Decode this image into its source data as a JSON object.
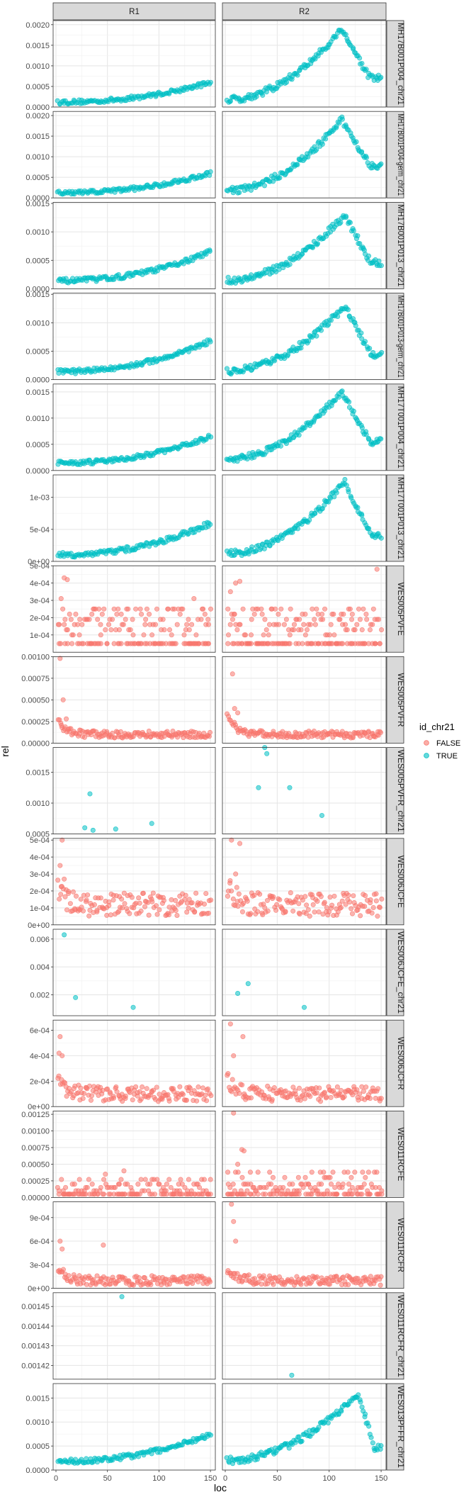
{
  "chart_data": {
    "type": "scatter",
    "xlabel": "loc",
    "ylabel": "rel",
    "xlim": [
      0,
      152
    ],
    "x_ticks": [
      {
        "value": 0,
        "label": "0"
      },
      {
        "value": 50,
        "label": "50"
      },
      {
        "value": 100,
        "label": "100"
      },
      {
        "value": 150,
        "label": "150"
      }
    ],
    "columns": [
      "R1",
      "R2"
    ],
    "legend": {
      "title": "id_chr21",
      "placement": "right",
      "items": [
        {
          "label": "FALSE",
          "color": "#F8766D"
        },
        {
          "label": "TRUE",
          "color": "#00BFC4"
        }
      ]
    },
    "grid": true,
    "panels": [
      {
        "row": "MH17B001P004_chr21",
        "group": "TRUE",
        "ylim": [
          0,
          0.0021
        ],
        "y_ticks": [
          {
            "value": 0,
            "label": "0.0000"
          },
          {
            "value": 0.0005,
            "label": "0.0005"
          },
          {
            "value": 0.001,
            "label": "0.0010"
          },
          {
            "value": 0.0015,
            "label": "0.0015"
          },
          {
            "value": 0.002,
            "label": "0.0020"
          }
        ],
        "R1": {
          "pattern": "rise",
          "y0": 0.00012,
          "y1": 0.0006,
          "noise": 5e-05,
          "n": 120
        },
        "R2": {
          "pattern": "peak",
          "y0": 0.00018,
          "peak": 0.0019,
          "peakx": 112,
          "end": 0.0007,
          "noise": 8e-05,
          "n": 130
        }
      },
      {
        "row": "MH17B001P004-germ_chr21",
        "group": "TRUE",
        "ylim": [
          0,
          0.0021
        ],
        "y_ticks": [
          {
            "value": 0,
            "label": "0.0000"
          },
          {
            "value": 0.0005,
            "label": "0.0005"
          },
          {
            "value": 0.001,
            "label": "0.0010"
          },
          {
            "value": 0.0015,
            "label": "0.0015"
          },
          {
            "value": 0.002,
            "label": "0.0020"
          }
        ],
        "R1": {
          "pattern": "rise",
          "y0": 0.00012,
          "y1": 0.0006,
          "noise": 5e-05,
          "n": 120
        },
        "R2": {
          "pattern": "peak",
          "y0": 0.00018,
          "peak": 0.0019,
          "peakx": 112,
          "end": 0.0008,
          "noise": 8e-05,
          "n": 130
        }
      },
      {
        "row": "MH17B001P013_chr21",
        "group": "TRUE",
        "ylim": [
          0,
          0.00152
        ],
        "y_ticks": [
          {
            "value": 0,
            "label": "0.0000"
          },
          {
            "value": 0.0005,
            "label": "0.0005"
          },
          {
            "value": 0.001,
            "label": "0.0010"
          },
          {
            "value": 0.0015,
            "label": "0.0015"
          }
        ],
        "R1": {
          "pattern": "rise",
          "y0": 0.00014,
          "y1": 0.00065,
          "noise": 4e-05,
          "n": 120
        },
        "R2": {
          "pattern": "peak",
          "y0": 0.00015,
          "peak": 0.0013,
          "peakx": 115,
          "end": 0.00045,
          "noise": 6e-05,
          "n": 130
        }
      },
      {
        "row": "MH17B001P013-germ_chr21",
        "group": "TRUE",
        "ylim": [
          0,
          0.00152
        ],
        "y_ticks": [
          {
            "value": 0,
            "label": "0.0000"
          },
          {
            "value": 0.0005,
            "label": "0.0005"
          },
          {
            "value": 0.001,
            "label": "0.0010"
          },
          {
            "value": 0.0015,
            "label": "0.0015"
          }
        ],
        "R1": {
          "pattern": "rise",
          "y0": 0.00014,
          "y1": 0.00068,
          "noise": 4e-05,
          "n": 120
        },
        "R2": {
          "pattern": "peak",
          "y0": 0.00015,
          "peak": 0.0013,
          "peakx": 115,
          "end": 0.00045,
          "noise": 6e-05,
          "n": 130
        }
      },
      {
        "row": "MH17T001P004_chr21",
        "group": "TRUE",
        "ylim": [
          0,
          0.00165
        ],
        "y_ticks": [
          {
            "value": 0,
            "label": "0.0000"
          },
          {
            "value": 0.0005,
            "label": "0.0005"
          },
          {
            "value": 0.001,
            "label": "0.0010"
          },
          {
            "value": 0.0015,
            "label": "0.0015"
          }
        ],
        "R1": {
          "pattern": "rise",
          "y0": 0.00014,
          "y1": 0.00065,
          "noise": 4e-05,
          "n": 120
        },
        "R2": {
          "pattern": "peak",
          "y0": 0.00022,
          "peak": 0.0015,
          "peakx": 112,
          "end": 0.00055,
          "noise": 6e-05,
          "n": 130
        }
      },
      {
        "row": "MH17T001P013_chr21",
        "group": "TRUE",
        "ylim": [
          0,
          0.00135
        ],
        "y_ticks": [
          {
            "value": 0,
            "label": "0e+00"
          },
          {
            "value": 0.0005,
            "label": "5e-04"
          },
          {
            "value": 0.001,
            "label": "1e-03"
          }
        ],
        "R1": {
          "pattern": "rise",
          "y0": 0.0001,
          "y1": 0.0006,
          "noise": 4e-05,
          "n": 120
        },
        "R2": {
          "pattern": "peak",
          "y0": 0.00012,
          "peak": 0.00125,
          "peakx": 115,
          "end": 0.0004,
          "noise": 5e-05,
          "n": 130
        }
      },
      {
        "row": "WES005PVFE",
        "group": "FALSE",
        "ylim": [
          0,
          0.0005
        ],
        "y_ticks": [
          {
            "value": 0,
            "label": ""
          },
          {
            "value": 0.0001,
            "label": "1e-04"
          },
          {
            "value": 0.0002,
            "label": "2e-04"
          },
          {
            "value": 0.0003,
            "label": "3e-04"
          },
          {
            "value": 0.0004,
            "label": "4e-04"
          },
          {
            "value": 0.0005,
            "label": "5e-04"
          }
        ],
        "R1": {
          "pattern": "levels",
          "levels": [
            5e-05,
            0.0001,
            0.00013,
            0.00016,
            0.00019,
            0.00022,
            0.00025
          ],
          "n": 110,
          "extras": [
            [
              5,
              0.00031
            ],
            [
              8,
              0.00043
            ],
            [
              11,
              0.00042
            ],
            [
              134,
              0.00031
            ]
          ]
        },
        "R2": {
          "pattern": "levels",
          "levels": [
            5e-05,
            0.0001,
            0.00013,
            0.00016,
            0.00019,
            0.00022,
            0.00025
          ],
          "n": 120,
          "extras": [
            [
              10,
              0.0004
            ],
            [
              14,
              0.00041
            ],
            [
              146,
              0.00048
            ],
            [
              5,
              0.00035
            ]
          ]
        }
      },
      {
        "row": "WES005PVFR",
        "group": "FALSE",
        "ylim": [
          0,
          0.001
        ],
        "y_ticks": [
          {
            "value": 0,
            "label": "0.00000"
          },
          {
            "value": 0.00025,
            "label": "0.00025"
          },
          {
            "value": 0.0005,
            "label": "0.00050"
          },
          {
            "value": 0.00075,
            "label": "0.00075"
          },
          {
            "value": 0.001,
            "label": "0.00100"
          }
        ],
        "R1": {
          "pattern": "decay",
          "base": 0.0001,
          "start": 0.0003,
          "noise": 4e-05,
          "n": 140,
          "extras": [
            [
              4,
              0.00098
            ],
            [
              7,
              0.0005
            ],
            [
              10,
              0.00028
            ]
          ]
        },
        "R2": {
          "pattern": "decay",
          "base": 0.0001,
          "start": 0.0004,
          "noise": 4e-05,
          "n": 140,
          "extras": [
            [
              7,
              0.0008
            ],
            [
              9,
              0.0004
            ],
            [
              12,
              0.00035
            ]
          ]
        }
      },
      {
        "row": "WES005PVFR_chr21",
        "group": "TRUE",
        "ylim": [
          0.0005,
          0.0019
        ],
        "y_ticks": [
          {
            "value": 0.0005,
            "label": "0.0005"
          },
          {
            "value": 0.001,
            "label": "0.0010"
          },
          {
            "value": 0.0015,
            "label": "0.0015"
          }
        ],
        "R1": {
          "pattern": "points",
          "points": [
            [
              28,
              0.0006
            ],
            [
              33,
              0.00115
            ],
            [
              36,
              0.00056
            ],
            [
              58,
              0.00058
            ],
            [
              93,
              0.00067
            ]
          ]
        },
        "R2": {
          "pattern": "points",
          "points": [
            [
              32,
              0.00125
            ],
            [
              38,
              0.0019
            ],
            [
              40,
              0.0018
            ],
            [
              62,
              0.00125
            ],
            [
              93,
              0.0008
            ]
          ]
        }
      },
      {
        "row": "WES006JCFE",
        "group": "FALSE",
        "ylim": [
          0,
          0.00051
        ],
        "y_ticks": [
          {
            "value": 0,
            "label": "0e+00"
          },
          {
            "value": 0.0001,
            "label": "1e-04"
          },
          {
            "value": 0.0002,
            "label": "2e-04"
          },
          {
            "value": 0.0003,
            "label": "3e-04"
          },
          {
            "value": 0.0004,
            "label": "4e-04"
          },
          {
            "value": 0.0005,
            "label": "5e-04"
          }
        ],
        "R1": {
          "pattern": "decay",
          "base": 0.00012,
          "start": 0.00022,
          "noise": 7e-05,
          "n": 140,
          "extras": [
            [
              6,
              0.0005
            ],
            [
              4,
              0.00035
            ],
            [
              8,
              0.00027
            ]
          ]
        },
        "R2": {
          "pattern": "decay",
          "base": 0.00012,
          "start": 0.00025,
          "noise": 7e-05,
          "n": 140,
          "extras": [
            [
              6,
              0.0005
            ],
            [
              14,
              0.00048
            ],
            [
              10,
              0.0003
            ]
          ]
        }
      },
      {
        "row": "WES006JCFE_chr21",
        "group": "TRUE",
        "ylim": [
          0.0005,
          0.0067
        ],
        "y_ticks": [
          {
            "value": 0.002,
            "label": "0.002"
          },
          {
            "value": 0.004,
            "label": "0.004"
          },
          {
            "value": 0.006,
            "label": "0.006"
          }
        ],
        "R1": {
          "pattern": "points",
          "points": [
            [
              8,
              0.0063
            ],
            [
              19,
              0.0018
            ],
            [
              75,
              0.0011
            ]
          ]
        },
        "R2": {
          "pattern": "points",
          "points": [
            [
              12,
              0.0021
            ],
            [
              22,
              0.0028
            ],
            [
              76,
              0.0011
            ]
          ]
        }
      },
      {
        "row": "WES006JCFR",
        "group": "FALSE",
        "ylim": [
          0,
          0.00068
        ],
        "y_ticks": [
          {
            "value": 0,
            "label": "0e+00"
          },
          {
            "value": 0.0002,
            "label": "2e-04"
          },
          {
            "value": 0.0004,
            "label": "4e-04"
          },
          {
            "value": 0.0006,
            "label": "6e-04"
          }
        ],
        "R1": {
          "pattern": "decay",
          "base": 0.0001,
          "start": 0.00025,
          "noise": 6e-05,
          "n": 140,
          "extras": [
            [
              4,
              0.00055
            ],
            [
              6,
              0.0004
            ],
            [
              3,
              0.00042
            ]
          ]
        },
        "R2": {
          "pattern": "decay",
          "base": 0.0001,
          "start": 0.00025,
          "noise": 6e-05,
          "n": 140,
          "extras": [
            [
              5,
              0.00065
            ],
            [
              17,
              0.00055
            ],
            [
              8,
              0.0004
            ]
          ]
        }
      },
      {
        "row": "WES011RCFE",
        "group": "FALSE",
        "ylim": [
          0,
          0.0013
        ],
        "y_ticks": [
          {
            "value": 0,
            "label": "0.00000"
          },
          {
            "value": 0.00025,
            "label": "0.00025"
          },
          {
            "value": 0.0005,
            "label": "0.00050"
          },
          {
            "value": 0.00075,
            "label": "0.00075"
          },
          {
            "value": 0.001,
            "label": "0.00100"
          },
          {
            "value": 0.00125,
            "label": "0.00125"
          }
        ],
        "R1": {
          "pattern": "levels",
          "levels": [
            5e-05,
            0.0001,
            0.00015,
            0.0002,
            0.00027
          ],
          "n": 100,
          "extras": [
            [
              66,
              0.0004
            ],
            [
              48,
              0.00035
            ]
          ]
        },
        "R2": {
          "pattern": "levels",
          "levels": [
            5e-05,
            0.0001,
            0.00015,
            0.0002,
            0.0003,
            0.00038
          ],
          "n": 110,
          "extras": [
            [
              8,
              0.00127
            ],
            [
              16,
              0.00072
            ],
            [
              18,
              0.0007
            ],
            [
              12,
              0.0005
            ]
          ]
        }
      },
      {
        "row": "WES011RCFR",
        "group": "FALSE",
        "ylim": [
          0,
          0.0011
        ],
        "y_ticks": [
          {
            "value": 0,
            "label": "0e+00"
          },
          {
            "value": 0.0003,
            "label": "3e-04"
          },
          {
            "value": 0.0006,
            "label": "6e-04"
          },
          {
            "value": 0.0009,
            "label": "9e-04"
          }
        ],
        "R1": {
          "pattern": "decay",
          "base": 0.0001,
          "start": 0.0003,
          "noise": 6e-05,
          "n": 140,
          "extras": [
            [
              4,
              0.0006
            ],
            [
              46,
              0.00055
            ],
            [
              6,
              0.0005
            ]
          ]
        },
        "R2": {
          "pattern": "decay",
          "base": 0.0001,
          "start": 0.0003,
          "noise": 6e-05,
          "n": 140,
          "extras": [
            [
              6,
              0.00107
            ],
            [
              8,
              0.00085
            ],
            [
              10,
              0.0006
            ]
          ]
        }
      },
      {
        "row": "WES011RCFR_chr21",
        "group": "TRUE",
        "ylim": [
          0.001413,
          0.001457
        ],
        "y_ticks": [
          {
            "value": 0.00142,
            "label": "0.00142"
          },
          {
            "value": 0.00143,
            "label": "0.00143"
          },
          {
            "value": 0.00144,
            "label": "0.00144"
          },
          {
            "value": 0.00145,
            "label": "0.00145"
          }
        ],
        "R1": {
          "pattern": "points",
          "points": [
            [
              64,
              0.001455
            ]
          ]
        },
        "R2": {
          "pattern": "points",
          "points": [
            [
              64,
              0.001415
            ]
          ]
        }
      },
      {
        "row": "WES013PFFR_chr21",
        "group": "TRUE",
        "ylim": [
          0,
          0.0018
        ],
        "y_ticks": [
          {
            "value": 0,
            "label": "0.0000"
          },
          {
            "value": 0.0005,
            "label": "0.0005"
          },
          {
            "value": 0.001,
            "label": "0.0010"
          },
          {
            "value": 0.0015,
            "label": "0.0015"
          }
        ],
        "R1": {
          "pattern": "rise",
          "y0": 0.00018,
          "y1": 0.00075,
          "noise": 5e-05,
          "n": 120
        },
        "R2": {
          "pattern": "peak",
          "y0": 0.0002,
          "peak": 0.0016,
          "peakx": 128,
          "end": 0.00045,
          "noise": 7e-05,
          "n": 130
        }
      }
    ]
  }
}
